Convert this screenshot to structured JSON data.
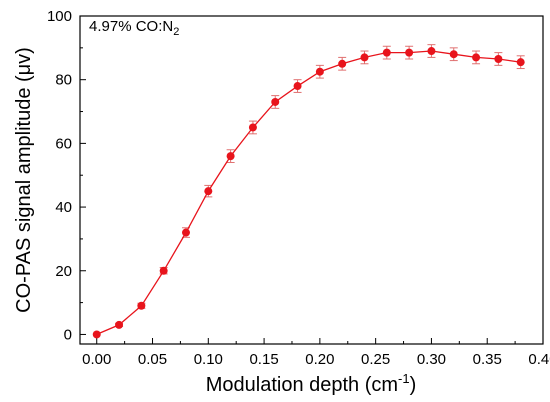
{
  "chart_data": {
    "type": "line",
    "annotation": {
      "prefix": "4.97% CO:N",
      "subscript": "2"
    },
    "xlabel": {
      "main": "Modulation depth (cm",
      "sup": "-1",
      "close": ")"
    },
    "ylabel": "CO-PAS signal amplitude (μv)",
    "xlim": [
      -0.015,
      0.4
    ],
    "ylim": [
      -3,
      100
    ],
    "xticks": [
      0.0,
      0.05,
      0.1,
      0.15,
      0.2,
      0.25,
      0.3,
      0.35,
      0.4
    ],
    "xtick_labels": [
      "0.00",
      "0.05",
      "0.10",
      "0.15",
      "0.20",
      "0.25",
      "0.30",
      "0.35",
      "0.40"
    ],
    "yticks": [
      0,
      20,
      40,
      60,
      80,
      100
    ],
    "ytick_labels": [
      "0",
      "20",
      "40",
      "60",
      "80",
      "100"
    ],
    "grid": false,
    "colors": {
      "series": "#e8141c",
      "error_bars": "#e07070",
      "axes": "#000000"
    },
    "series": [
      {
        "x": [
          0.0,
          0.02,
          0.04,
          0.06,
          0.08,
          0.1,
          0.12,
          0.14,
          0.16,
          0.18,
          0.2,
          0.22,
          0.24,
          0.26,
          0.28,
          0.3,
          0.32,
          0.34,
          0.36,
          0.38
        ],
        "y": [
          0,
          3,
          9,
          20,
          32,
          45,
          56,
          65,
          73,
          78,
          82.5,
          85,
          87,
          88.5,
          88.5,
          89,
          88,
          87,
          86.5,
          85.5
        ],
        "error": [
          0,
          0.5,
          0.8,
          1.0,
          1.5,
          1.8,
          2.0,
          2.0,
          2.0,
          2.0,
          2.0,
          2.0,
          2.0,
          2.0,
          2.0,
          2.0,
          2.0,
          2.0,
          2.0,
          2.0
        ]
      }
    ]
  }
}
